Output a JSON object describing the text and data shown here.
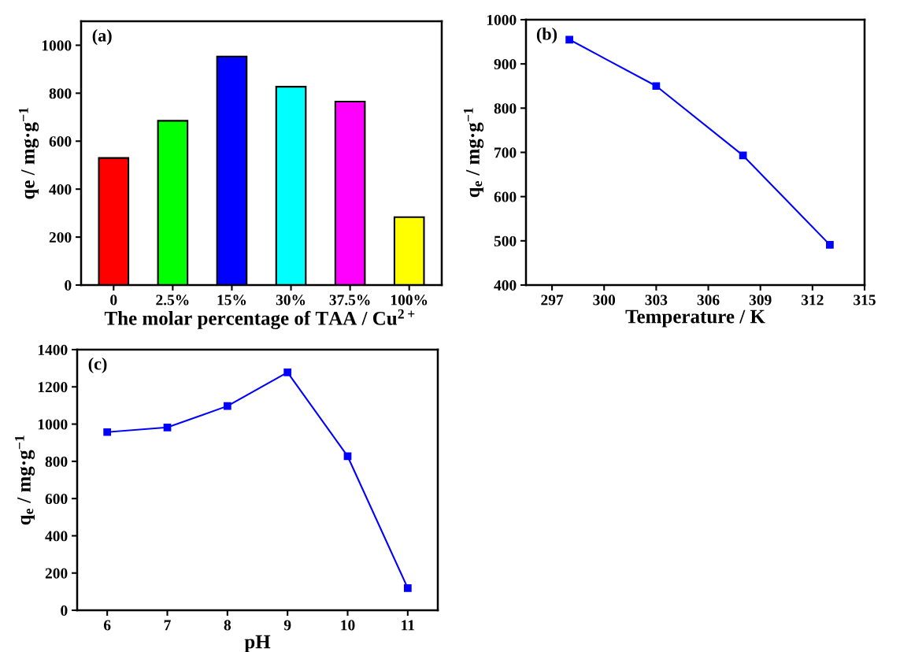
{
  "chart_data": [
    {
      "type": "bar",
      "categories": [
        "0",
        "2.5%",
        "15%",
        "30%",
        "37.5%",
        "100%"
      ],
      "values": [
        530,
        685,
        953,
        827,
        765,
        283
      ],
      "colors": [
        "#ff0000",
        "#00ff00",
        "#0000ff",
        "#00ffff",
        "#ff00ff",
        "#ffff00"
      ],
      "ylim": [
        0,
        1100
      ],
      "yticks": [
        0,
        200,
        400,
        600,
        800,
        1000
      ],
      "xlabel": "The molar percentage of TAA / Cu$^{2+}$",
      "ylabel": "qe / mg·g$^{−1}$",
      "annotations": [
        "(a)"
      ],
      "grid": false,
      "legend": false
    },
    {
      "type": "line",
      "x": [
        298,
        303,
        308,
        313
      ],
      "series": [
        {
          "color": "#0000ff",
          "values": [
            955,
            850,
            693,
            491
          ]
        }
      ],
      "xlim": [
        295.5,
        315
      ],
      "xticks": [
        297,
        300,
        303,
        306,
        309,
        312,
        315
      ],
      "ylim": [
        400,
        1000
      ],
      "yticks": [
        400,
        500,
        600,
        700,
        800,
        900,
        1000
      ],
      "xlabel": "Temperature / K",
      "ylabel": "q$_{e}$ / mg·g$^{−1}$",
      "annotations": [
        "(b)"
      ],
      "marker": "square",
      "line_style": "solid",
      "grid": false,
      "legend": false
    },
    {
      "type": "line",
      "x": [
        6,
        7,
        8,
        9,
        10,
        11
      ],
      "series": [
        {
          "color": "#0000ff",
          "values": [
            957,
            982,
            1097,
            1278,
            827,
            119
          ]
        }
      ],
      "xlim": [
        5.5,
        11.5
      ],
      "xticks": [
        6,
        7,
        8,
        9,
        10,
        11
      ],
      "ylim": [
        0,
        1400
      ],
      "yticks": [
        0,
        200,
        400,
        600,
        800,
        1000,
        1200,
        1400
      ],
      "xlabel": "pH",
      "ylabel": "q$_{e}$ / mg·g$^{−1}$",
      "annotations": [
        "(c)"
      ],
      "marker": "square",
      "line_style": "solid",
      "grid": false,
      "legend": false
    }
  ]
}
